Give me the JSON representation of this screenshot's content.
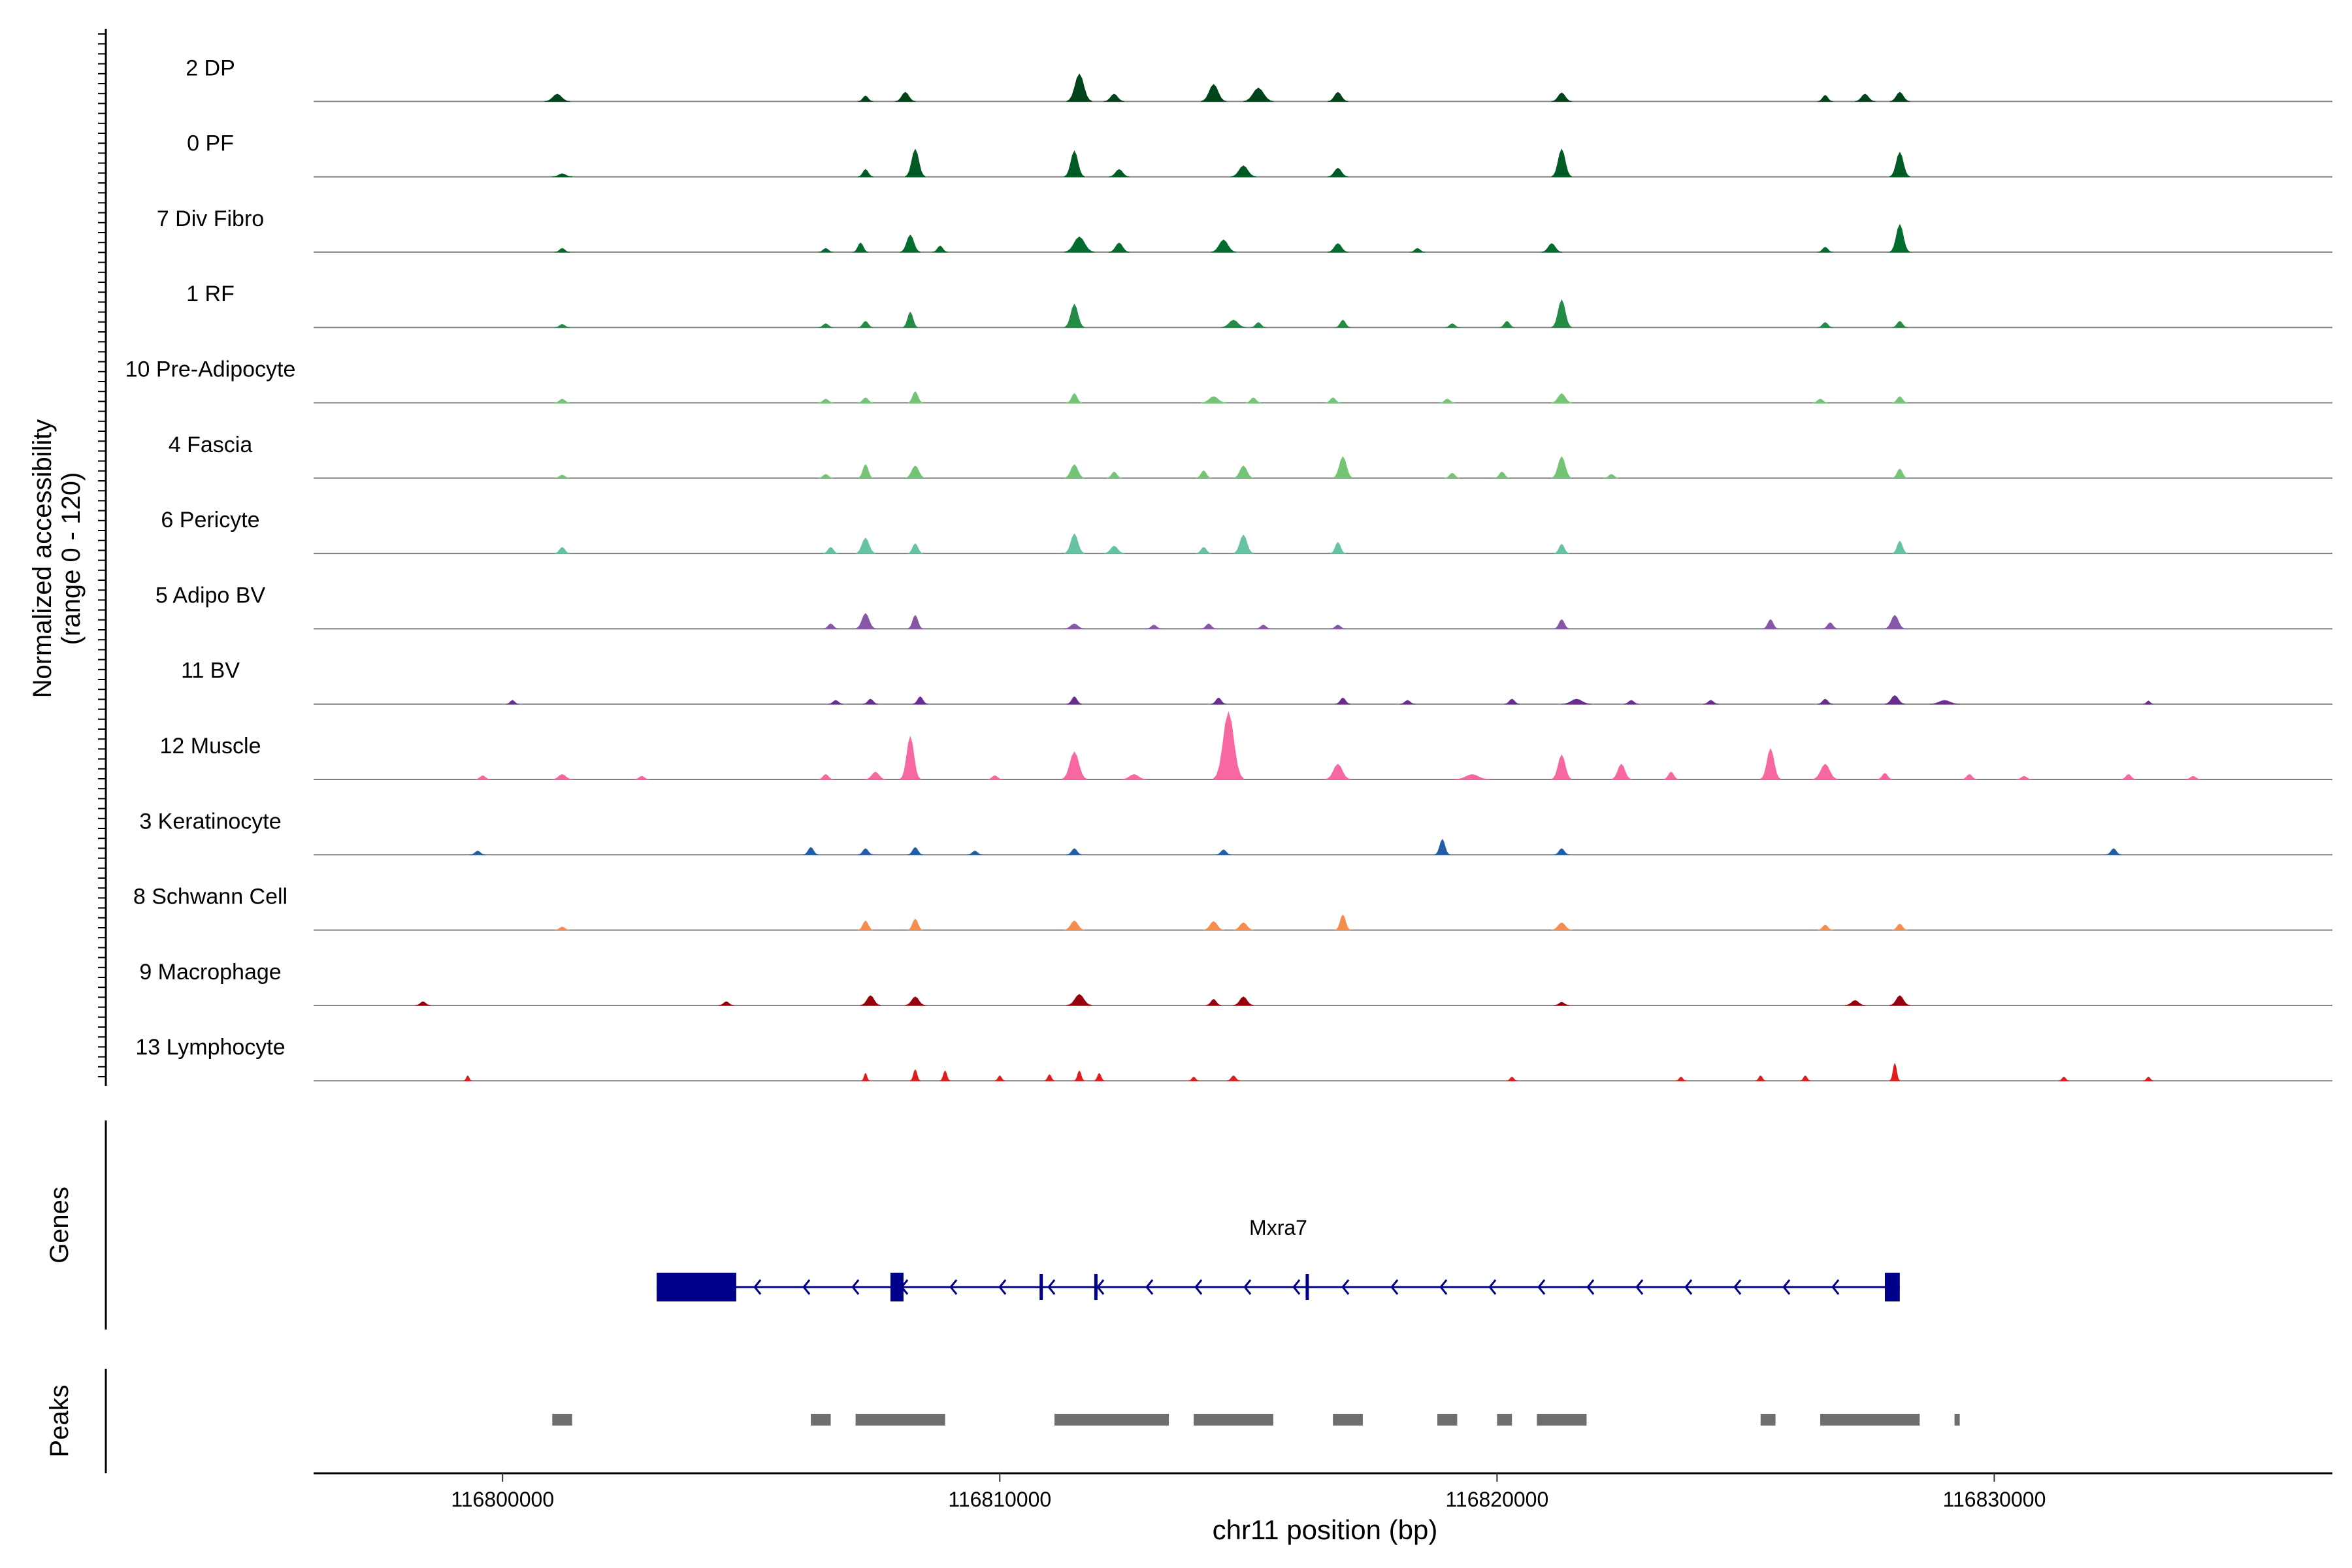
{
  "chart_data": {
    "type": "area",
    "title": "",
    "xlabel": "chr11 position (bp)",
    "ylabel": "Normalized accessibility",
    "ylabel_range": "(range 0 - 120)",
    "xlim": [
      116796200,
      116836800
    ],
    "ylim": [
      0,
      120
    ],
    "x_ticks": [
      116800000,
      116810000,
      116820000,
      116830000
    ],
    "x_tick_labels": [
      "116800000",
      "116810000",
      "116820000",
      "116830000"
    ],
    "tracks": [
      {
        "name": "2 DP",
        "color": "#00441b",
        "peaks": [
          [
            116801100,
            12,
            500
          ],
          [
            116808100,
            15,
            400
          ],
          [
            116807300,
            9,
            300
          ],
          [
            116811600,
            45,
            500
          ],
          [
            116812300,
            12,
            400
          ],
          [
            116814300,
            28,
            500
          ],
          [
            116815200,
            22,
            600
          ],
          [
            116816800,
            15,
            400
          ],
          [
            116821300,
            14,
            400
          ],
          [
            116826600,
            10,
            300
          ],
          [
            116827400,
            12,
            400
          ],
          [
            116828100,
            15,
            400
          ]
        ]
      },
      {
        "name": "0 PF",
        "color": "#005a24",
        "peaks": [
          [
            116801200,
            5,
            400
          ],
          [
            116807300,
            12,
            300
          ],
          [
            116808300,
            45,
            400
          ],
          [
            116811500,
            42,
            400
          ],
          [
            116812400,
            12,
            400
          ],
          [
            116814900,
            18,
            500
          ],
          [
            116816800,
            14,
            400
          ],
          [
            116821300,
            45,
            400
          ],
          [
            116828100,
            40,
            400
          ]
        ]
      },
      {
        "name": "7 Div Fibro",
        "color": "#006d2c",
        "peaks": [
          [
            116801200,
            6,
            300
          ],
          [
            116806500,
            6,
            300
          ],
          [
            116807200,
            15,
            300
          ],
          [
            116808200,
            28,
            400
          ],
          [
            116808800,
            10,
            300
          ],
          [
            116811600,
            25,
            600
          ],
          [
            116812400,
            15,
            400
          ],
          [
            116814500,
            20,
            500
          ],
          [
            116816800,
            14,
            400
          ],
          [
            116818400,
            6,
            300
          ],
          [
            116821100,
            14,
            400
          ],
          [
            116826600,
            8,
            300
          ],
          [
            116828100,
            45,
            400
          ]
        ]
      },
      {
        "name": "1 RF",
        "color": "#238b45",
        "peaks": [
          [
            116801200,
            5,
            300
          ],
          [
            116806500,
            6,
            300
          ],
          [
            116807300,
            10,
            300
          ],
          [
            116808200,
            25,
            300
          ],
          [
            116811500,
            38,
            400
          ],
          [
            116814700,
            12,
            500
          ],
          [
            116815200,
            8,
            300
          ],
          [
            116816900,
            12,
            300
          ],
          [
            116819100,
            6,
            300
          ],
          [
            116820200,
            10,
            300
          ],
          [
            116821300,
            45,
            400
          ],
          [
            116826600,
            8,
            300
          ],
          [
            116828100,
            10,
            300
          ]
        ]
      },
      {
        "name": "10 Pre-Adipocyte",
        "color": "#74c476",
        "peaks": [
          [
            116801200,
            6,
            300
          ],
          [
            116806500,
            6,
            300
          ],
          [
            116807300,
            8,
            300
          ],
          [
            116808300,
            18,
            300
          ],
          [
            116811500,
            15,
            300
          ],
          [
            116814300,
            10,
            500
          ],
          [
            116815100,
            8,
            300
          ],
          [
            116816700,
            8,
            300
          ],
          [
            116819000,
            6,
            300
          ],
          [
            116821300,
            15,
            400
          ],
          [
            116826500,
            6,
            300
          ],
          [
            116828100,
            10,
            300
          ]
        ]
      },
      {
        "name": "4 Fascia",
        "color": "#74c476",
        "peaks": [
          [
            116801200,
            5,
            300
          ],
          [
            116806500,
            6,
            300
          ],
          [
            116807300,
            22,
            300
          ],
          [
            116808300,
            20,
            400
          ],
          [
            116811500,
            22,
            400
          ],
          [
            116812300,
            10,
            300
          ],
          [
            116814100,
            12,
            300
          ],
          [
            116814900,
            20,
            400
          ],
          [
            116816900,
            35,
            400
          ],
          [
            116819100,
            8,
            300
          ],
          [
            116820100,
            10,
            300
          ],
          [
            116821300,
            35,
            400
          ],
          [
            116822300,
            6,
            300
          ],
          [
            116828100,
            15,
            300
          ]
        ]
      },
      {
        "name": "6 Pericyte",
        "color": "#66c2a4",
        "peaks": [
          [
            116801200,
            10,
            300
          ],
          [
            116806600,
            10,
            300
          ],
          [
            116807300,
            25,
            400
          ],
          [
            116808300,
            16,
            300
          ],
          [
            116811500,
            32,
            400
          ],
          [
            116812300,
            12,
            400
          ],
          [
            116814100,
            10,
            300
          ],
          [
            116814900,
            30,
            400
          ],
          [
            116816800,
            18,
            300
          ],
          [
            116821300,
            15,
            300
          ],
          [
            116828100,
            20,
            300
          ]
        ]
      },
      {
        "name": "5 Adipo BV",
        "color": "#8856a7",
        "peaks": [
          [
            116806600,
            8,
            300
          ],
          [
            116807300,
            25,
            400
          ],
          [
            116808300,
            22,
            300
          ],
          [
            116811500,
            8,
            400
          ],
          [
            116813100,
            6,
            300
          ],
          [
            116814200,
            8,
            300
          ],
          [
            116815300,
            6,
            300
          ],
          [
            116816800,
            6,
            300
          ],
          [
            116821300,
            15,
            300
          ],
          [
            116825500,
            15,
            300
          ],
          [
            116826700,
            10,
            300
          ],
          [
            116828000,
            22,
            400
          ]
        ]
      },
      {
        "name": "11 BV",
        "color": "#6a2c91",
        "peaks": [
          [
            116800200,
            6,
            250
          ],
          [
            116806700,
            6,
            300
          ],
          [
            116807400,
            8,
            300
          ],
          [
            116808400,
            12,
            300
          ],
          [
            116811500,
            12,
            300
          ],
          [
            116814400,
            10,
            300
          ],
          [
            116816900,
            10,
            300
          ],
          [
            116818200,
            6,
            300
          ],
          [
            116820300,
            8,
            300
          ],
          [
            116821600,
            8,
            600
          ],
          [
            116822700,
            6,
            300
          ],
          [
            116824300,
            6,
            300
          ],
          [
            116826600,
            8,
            300
          ],
          [
            116828000,
            14,
            400
          ],
          [
            116829000,
            6,
            600
          ],
          [
            116833100,
            5,
            200
          ]
        ]
      },
      {
        "name": "12 Muscle",
        "color": "#f768a1",
        "peaks": [
          [
            116799600,
            6,
            300
          ],
          [
            116801200,
            8,
            400
          ],
          [
            116802800,
            5,
            300
          ],
          [
            116806500,
            8,
            300
          ],
          [
            116807500,
            12,
            400
          ],
          [
            116808200,
            70,
            400
          ],
          [
            116809900,
            6,
            300
          ],
          [
            116811500,
            45,
            500
          ],
          [
            116812700,
            8,
            500
          ],
          [
            116814600,
            110,
            600
          ],
          [
            116816800,
            25,
            500
          ],
          [
            116819500,
            8,
            700
          ],
          [
            116821300,
            40,
            400
          ],
          [
            116822500,
            25,
            400
          ],
          [
            116823500,
            12,
            300
          ],
          [
            116825500,
            50,
            400
          ],
          [
            116826600,
            25,
            500
          ],
          [
            116827800,
            10,
            300
          ],
          [
            116829500,
            8,
            300
          ],
          [
            116830600,
            5,
            300
          ],
          [
            116832700,
            8,
            300
          ],
          [
            116834000,
            5,
            300
          ]
        ]
      },
      {
        "name": "3 Keratinocyte",
        "color": "#225ea8",
        "peaks": [
          [
            116799500,
            6,
            300
          ],
          [
            116806200,
            12,
            300
          ],
          [
            116807300,
            10,
            300
          ],
          [
            116808300,
            12,
            300
          ],
          [
            116809500,
            6,
            300
          ],
          [
            116811500,
            10,
            300
          ],
          [
            116814500,
            8,
            300
          ],
          [
            116818900,
            25,
            300
          ],
          [
            116821300,
            10,
            300
          ],
          [
            116832400,
            10,
            300
          ]
        ]
      },
      {
        "name": "8 Schwann Cell",
        "color": "#f68d4e",
        "peaks": [
          [
            116801200,
            5,
            300
          ],
          [
            116807300,
            15,
            300
          ],
          [
            116808300,
            18,
            300
          ],
          [
            116811500,
            15,
            400
          ],
          [
            116814300,
            14,
            400
          ],
          [
            116814900,
            12,
            400
          ],
          [
            116816900,
            25,
            300
          ],
          [
            116821300,
            12,
            400
          ],
          [
            116826600,
            8,
            300
          ],
          [
            116828100,
            10,
            300
          ]
        ]
      },
      {
        "name": "9 Macrophage",
        "color": "#99000d",
        "peaks": [
          [
            116798400,
            6,
            300
          ],
          [
            116804500,
            6,
            300
          ],
          [
            116807400,
            16,
            400
          ],
          [
            116808300,
            14,
            400
          ],
          [
            116811600,
            18,
            500
          ],
          [
            116814300,
            10,
            300
          ],
          [
            116814900,
            14,
            400
          ],
          [
            116821300,
            5,
            300
          ],
          [
            116827200,
            8,
            400
          ],
          [
            116828100,
            16,
            400
          ]
        ]
      },
      {
        "name": "13 Lymphocyte",
        "color": "#e31a1c",
        "peaks": [
          [
            116799300,
            8,
            150
          ],
          [
            116807300,
            12,
            150
          ],
          [
            116808300,
            18,
            200
          ],
          [
            116808900,
            16,
            200
          ],
          [
            116810000,
            8,
            200
          ],
          [
            116811000,
            10,
            200
          ],
          [
            116811600,
            16,
            200
          ],
          [
            116812000,
            12,
            200
          ],
          [
            116813900,
            6,
            200
          ],
          [
            116814700,
            8,
            250
          ],
          [
            116820300,
            6,
            200
          ],
          [
            116823700,
            6,
            200
          ],
          [
            116825300,
            8,
            200
          ],
          [
            116826200,
            8,
            200
          ],
          [
            116828000,
            28,
            200
          ],
          [
            116831400,
            6,
            200
          ],
          [
            116833100,
            6,
            200
          ]
        ]
      }
    ],
    "genes": {
      "label": "Genes",
      "gene_name": "Mxra7",
      "strand": "-",
      "start": 116803100,
      "end": 116828100,
      "exons": [
        [
          116803100,
          116804700,
          "utr"
        ],
        [
          116807800,
          116808000,
          "cds"
        ],
        [
          116810800,
          116810850,
          "line"
        ],
        [
          116811900,
          116811950,
          "line"
        ],
        [
          116816150,
          116816200,
          "line"
        ],
        [
          116827800,
          116828100,
          "cds"
        ]
      ],
      "color": "#00008b"
    },
    "peaks_track": {
      "label": "Peaks",
      "color": "#6e6e6e",
      "intervals": [
        [
          116801000,
          116801400
        ],
        [
          116806200,
          116806600
        ],
        [
          116807100,
          116808900
        ],
        [
          116811100,
          116813400
        ],
        [
          116813900,
          116815500
        ],
        [
          116816700,
          116817300
        ],
        [
          116818800,
          116819200
        ],
        [
          116820000,
          116820300
        ],
        [
          116820800,
          116821800
        ],
        [
          116825300,
          116825600
        ],
        [
          116826500,
          116828500
        ],
        [
          116829200,
          116829300
        ]
      ]
    }
  }
}
